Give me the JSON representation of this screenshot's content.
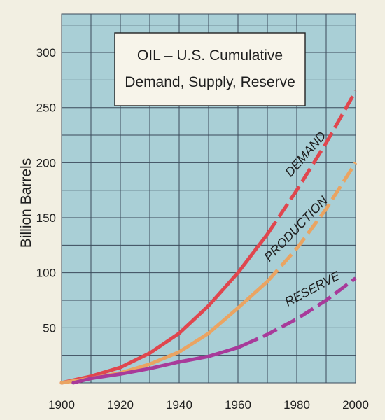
{
  "chart_data": {
    "type": "line",
    "title": "OIL – U.S. Cumulative",
    "subtitle": "Demand, Supply, Reserve",
    "xlabel": "",
    "ylabel": "Billion Barrels",
    "xlim": [
      1900,
      2000
    ],
    "ylim": [
      0,
      335
    ],
    "x_ticks": [
      1900,
      1920,
      1940,
      1960,
      1980,
      2000
    ],
    "y_ticks": [
      50,
      100,
      150,
      200,
      250,
      300
    ],
    "grid": true,
    "colors": {
      "plot_background": "#a9cfd6",
      "grid": "#3a4a5a",
      "demand": "#e0464e",
      "production": "#eaa462",
      "reserve": "#a83a9a"
    },
    "series": [
      {
        "name": "DEMAND",
        "x": [
          1900,
          1910,
          1920,
          1930,
          1940,
          1950,
          1960,
          1970,
          1980,
          1990,
          2000
        ],
        "y": [
          0,
          6,
          14,
          27,
          45,
          70,
          100,
          135,
          175,
          218,
          265
        ],
        "projected_from": 1970
      },
      {
        "name": "PRODUCTION",
        "x": [
          1900,
          1910,
          1920,
          1930,
          1940,
          1950,
          1960,
          1970,
          1980,
          1990,
          2000
        ],
        "y": [
          0,
          4,
          9,
          17,
          28,
          45,
          68,
          92,
          122,
          158,
          200
        ],
        "projected_from": 1970
      },
      {
        "name": "RESERVE",
        "x": [
          1904,
          1910,
          1920,
          1930,
          1940,
          1950,
          1960,
          1970,
          1980,
          1990,
          2000
        ],
        "y": [
          0,
          4,
          8,
          13,
          19,
          24,
          32,
          44,
          58,
          75,
          95
        ],
        "projected_from": 1962
      }
    ]
  }
}
